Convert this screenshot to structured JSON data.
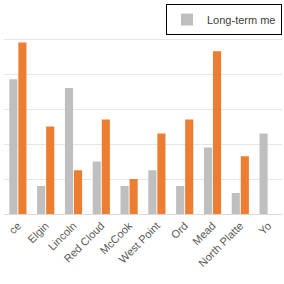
{
  "chart_data": {
    "type": "bar",
    "categories": [
      "ce",
      "Elgin",
      "Lincoln",
      "Red Cloud",
      "McCook",
      "West Point",
      "Ord",
      "Mead",
      "North Platte",
      "Yo"
    ],
    "series": [
      {
        "name": "Long-term me",
        "color": "#bfbfbf",
        "values": [
          3.85,
          0.8,
          3.6,
          1.5,
          0.8,
          1.25,
          0.8,
          1.9,
          0.6,
          2.3
        ]
      },
      {
        "color": "#ed7d31",
        "values": [
          4.9,
          2.5,
          1.25,
          2.7,
          1.0,
          2.3,
          2.7,
          4.65,
          1.65,
          null
        ]
      }
    ],
    "ylim": [
      0,
      6
    ],
    "yticks": [
      0,
      1,
      2,
      3,
      4,
      5,
      6
    ],
    "grid": true,
    "tick_labels": "x",
    "legend": "upper right"
  }
}
